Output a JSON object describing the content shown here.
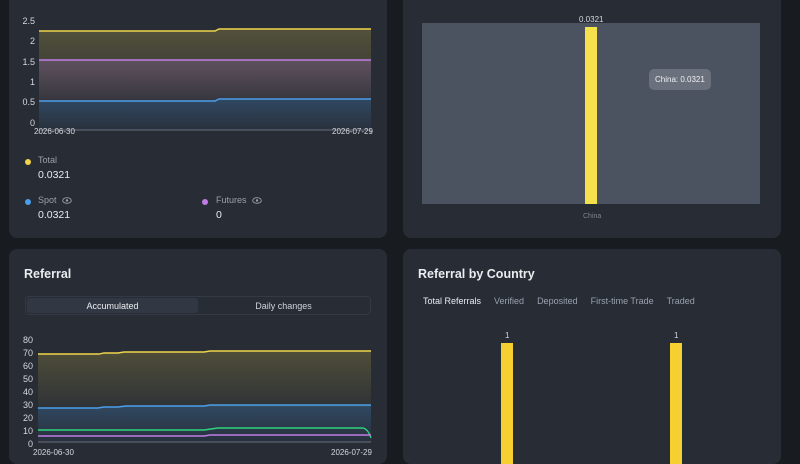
{
  "earnings_chart": {
    "y_ticks": [
      "2.5",
      "2",
      "1.5",
      "1",
      "0.5",
      "0"
    ],
    "x_ticks": [
      "2026-06-30",
      "2026-07-29"
    ],
    "colors": {
      "total": "#f0d54b",
      "futures": "#c07ce5",
      "spot": "#4b9eea"
    }
  },
  "legend": {
    "total": {
      "label": "Total",
      "value": "0.0321",
      "color": "#f0d54b"
    },
    "spot": {
      "label": "Spot",
      "value": "0.0321",
      "color": "#4b9eea",
      "icon": "eye-icon"
    },
    "futures": {
      "label": "Futures",
      "value": "0",
      "color": "#c07ce5",
      "icon": "eye-icon"
    }
  },
  "country_earnings": {
    "bar_label": "0.0321",
    "tooltip": "China: 0.0321",
    "x_label": "China",
    "bar_color": "#f5e14c"
  },
  "referral": {
    "title": "Referral",
    "tabs": [
      "Accumulated",
      "Daily changes"
    ],
    "active_tab": "Accumulated",
    "y_ticks": [
      "80",
      "70",
      "60",
      "50",
      "40",
      "30",
      "20",
      "10",
      "0"
    ],
    "x_ticks": [
      "2026-06-30",
      "2026-07-29"
    ],
    "colors": {
      "yellow": "#f0d54b",
      "blue": "#4b9eea",
      "green": "#2ed47a",
      "purple": "#c07ce5"
    }
  },
  "referral_by_country": {
    "title": "Referral by Country",
    "tabs": [
      "Total Referrals",
      "Verified",
      "Deposited",
      "First-time Trade",
      "Traded"
    ],
    "active_tab": "Total Referrals",
    "bar_labels": [
      "1",
      "1"
    ],
    "bar_color": "#f5d030"
  }
}
